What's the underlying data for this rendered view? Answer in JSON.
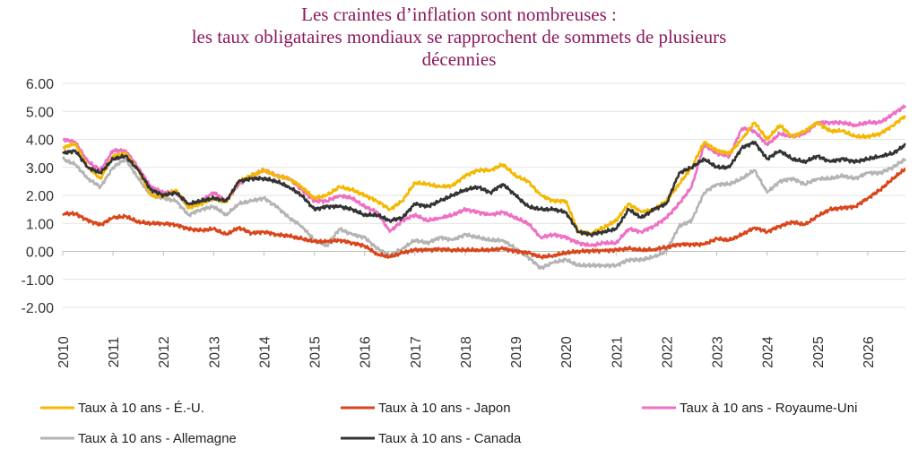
{
  "chart_data": {
    "type": "line",
    "title_lines": [
      "Les craintes d’inflation sont nombreuses :",
      "les taux obligataires mondiaux se rapprochent de sommets de plusieurs",
      "décennies"
    ],
    "xlabel": "",
    "ylabel": "",
    "ylim": [
      -2,
      6
    ],
    "xlim": [
      2010,
      2026.75
    ],
    "yticks": [
      "6.00",
      "5.00",
      "4.00",
      "3.00",
      "2.00",
      "1.00",
      "0.00",
      "-1.00",
      "-2.00"
    ],
    "xticks": [
      "2010",
      "2011",
      "2012",
      "2013",
      "2014",
      "2015",
      "2016",
      "2017",
      "2018",
      "2019",
      "2020",
      "2021",
      "2022",
      "2023",
      "2024",
      "2025",
      "2026"
    ],
    "grid": true,
    "legend_position": "bottom",
    "series": [
      {
        "name": "Taux à 10 ans - É.-U.",
        "color": "#f5b800",
        "x": [
          2010,
          2010.25,
          2010.5,
          2010.75,
          2011,
          2011.25,
          2011.5,
          2011.75,
          2012,
          2012.25,
          2012.5,
          2012.75,
          2013,
          2013.25,
          2013.5,
          2013.75,
          2014,
          2014.25,
          2014.5,
          2014.75,
          2015,
          2015.25,
          2015.5,
          2015.75,
          2016,
          2016.25,
          2016.5,
          2016.75,
          2017,
          2017.25,
          2017.5,
          2017.75,
          2018,
          2018.25,
          2018.5,
          2018.75,
          2019,
          2019.25,
          2019.5,
          2019.75,
          2020,
          2020.25,
          2020.5,
          2020.75,
          2021,
          2021.25,
          2021.5,
          2021.75,
          2022,
          2022.25,
          2022.5,
          2022.75,
          2023,
          2023.25,
          2023.5,
          2023.75,
          2024,
          2024.25,
          2024.5,
          2024.75,
          2025,
          2025.25,
          2025.5,
          2025.75,
          2026,
          2026.25,
          2026.5,
          2026.75
        ],
        "y": [
          3.7,
          3.85,
          3.0,
          2.6,
          3.4,
          3.5,
          2.9,
          2.0,
          1.95,
          2.2,
          1.55,
          1.7,
          1.9,
          1.75,
          2.5,
          2.7,
          2.9,
          2.7,
          2.6,
          2.3,
          1.9,
          2.0,
          2.3,
          2.2,
          2.0,
          1.8,
          1.5,
          1.8,
          2.45,
          2.4,
          2.3,
          2.35,
          2.7,
          2.9,
          2.9,
          3.1,
          2.7,
          2.5,
          2.0,
          1.8,
          1.8,
          0.7,
          0.65,
          0.85,
          1.1,
          1.7,
          1.4,
          1.5,
          1.8,
          2.4,
          3.0,
          3.9,
          3.6,
          3.5,
          4.0,
          4.6,
          4.0,
          4.5,
          4.1,
          4.3,
          4.6,
          4.3,
          4.3,
          4.1,
          4.1,
          4.2,
          4.5,
          4.85
        ]
      },
      {
        "name": "Taux à 10 ans - Japon",
        "color": "#d9461b",
        "x": [
          2010,
          2010.25,
          2010.5,
          2010.75,
          2011,
          2011.25,
          2011.5,
          2011.75,
          2012,
          2012.25,
          2012.5,
          2012.75,
          2013,
          2013.25,
          2013.5,
          2013.75,
          2014,
          2014.25,
          2014.5,
          2014.75,
          2015,
          2015.25,
          2015.5,
          2015.75,
          2016,
          2016.25,
          2016.5,
          2016.75,
          2017,
          2017.25,
          2017.5,
          2017.75,
          2018,
          2018.25,
          2018.5,
          2018.75,
          2019,
          2019.25,
          2019.5,
          2019.75,
          2020,
          2020.25,
          2020.5,
          2020.75,
          2021,
          2021.25,
          2021.5,
          2021.75,
          2022,
          2022.25,
          2022.5,
          2022.75,
          2023,
          2023.25,
          2023.5,
          2023.75,
          2024,
          2024.25,
          2024.5,
          2024.75,
          2025,
          2025.25,
          2025.5,
          2025.75,
          2026,
          2026.25,
          2026.5,
          2026.75
        ],
        "y": [
          1.35,
          1.35,
          1.1,
          0.95,
          1.2,
          1.25,
          1.05,
          1.0,
          1.0,
          0.95,
          0.8,
          0.75,
          0.8,
          0.6,
          0.85,
          0.65,
          0.7,
          0.6,
          0.55,
          0.45,
          0.35,
          0.35,
          0.4,
          0.3,
          0.2,
          -0.1,
          -0.2,
          -0.05,
          0.05,
          0.05,
          0.08,
          0.05,
          0.05,
          0.05,
          0.05,
          0.1,
          0.0,
          -0.05,
          -0.2,
          -0.15,
          -0.05,
          0.0,
          0.02,
          0.02,
          0.05,
          0.1,
          0.05,
          0.07,
          0.15,
          0.25,
          0.25,
          0.25,
          0.45,
          0.4,
          0.6,
          0.85,
          0.7,
          0.9,
          1.05,
          0.95,
          1.25,
          1.5,
          1.55,
          1.6,
          1.9,
          2.2,
          2.6,
          2.95
        ]
      },
      {
        "name": "Taux à 10 ans - Royaume-Uni",
        "color": "#ee6fc5",
        "x": [
          2010,
          2010.25,
          2010.5,
          2010.75,
          2011,
          2011.25,
          2011.5,
          2011.75,
          2012,
          2012.25,
          2012.5,
          2012.75,
          2013,
          2013.25,
          2013.5,
          2013.75,
          2014,
          2014.25,
          2014.5,
          2014.75,
          2015,
          2015.25,
          2015.5,
          2015.75,
          2016,
          2016.25,
          2016.5,
          2016.75,
          2017,
          2017.25,
          2017.5,
          2017.75,
          2018,
          2018.25,
          2018.5,
          2018.75,
          2019,
          2019.25,
          2019.5,
          2019.75,
          2020,
          2020.25,
          2020.5,
          2020.75,
          2021,
          2021.25,
          2021.5,
          2021.75,
          2022,
          2022.25,
          2022.5,
          2022.75,
          2023,
          2023.25,
          2023.5,
          2023.75,
          2024,
          2024.25,
          2024.5,
          2024.75,
          2025,
          2025.25,
          2025.5,
          2025.75,
          2026,
          2026.25,
          2026.5,
          2026.75
        ],
        "y": [
          4.0,
          3.9,
          3.2,
          2.9,
          3.6,
          3.6,
          3.0,
          2.3,
          2.1,
          2.1,
          1.6,
          1.8,
          2.1,
          1.8,
          2.4,
          2.7,
          2.9,
          2.7,
          2.6,
          2.2,
          1.8,
          1.8,
          2.0,
          1.9,
          1.6,
          1.4,
          0.7,
          1.1,
          1.3,
          1.1,
          1.2,
          1.3,
          1.5,
          1.4,
          1.3,
          1.4,
          1.2,
          1.0,
          0.5,
          0.6,
          0.5,
          0.3,
          0.2,
          0.3,
          0.3,
          0.8,
          0.7,
          0.9,
          1.2,
          1.7,
          2.3,
          3.8,
          3.5,
          3.4,
          4.4,
          4.3,
          3.8,
          4.2,
          4.1,
          4.2,
          4.6,
          4.6,
          4.6,
          4.5,
          4.6,
          4.6,
          4.9,
          5.2
        ]
      },
      {
        "name": "Taux à 10 ans - Allemagne",
        "color": "#b4b4b4",
        "x": [
          2010,
          2010.25,
          2010.5,
          2010.75,
          2011,
          2011.25,
          2011.5,
          2011.75,
          2012,
          2012.25,
          2012.5,
          2012.75,
          2013,
          2013.25,
          2013.5,
          2013.75,
          2014,
          2014.25,
          2014.5,
          2014.75,
          2015,
          2015.25,
          2015.5,
          2015.75,
          2016,
          2016.25,
          2016.5,
          2016.75,
          2017,
          2017.25,
          2017.5,
          2017.75,
          2018,
          2018.25,
          2018.5,
          2018.75,
          2019,
          2019.25,
          2019.5,
          2019.75,
          2020,
          2020.25,
          2020.5,
          2020.75,
          2021,
          2021.25,
          2021.5,
          2021.75,
          2022,
          2022.25,
          2022.5,
          2022.75,
          2023,
          2023.25,
          2023.5,
          2023.75,
          2024,
          2024.25,
          2024.5,
          2024.75,
          2025,
          2025.25,
          2025.5,
          2025.75,
          2026,
          2026.25,
          2026.5,
          2026.75
        ],
        "y": [
          3.3,
          3.1,
          2.6,
          2.3,
          3.0,
          3.3,
          2.6,
          2.0,
          1.9,
          1.8,
          1.3,
          1.5,
          1.6,
          1.3,
          1.7,
          1.8,
          1.9,
          1.6,
          1.2,
          0.9,
          0.4,
          0.2,
          0.8,
          0.6,
          0.5,
          0.1,
          -0.15,
          0.1,
          0.4,
          0.3,
          0.5,
          0.4,
          0.6,
          0.5,
          0.4,
          0.4,
          0.1,
          -0.2,
          -0.6,
          -0.4,
          -0.3,
          -0.5,
          -0.5,
          -0.5,
          -0.5,
          -0.3,
          -0.3,
          -0.2,
          0.0,
          0.9,
          1.1,
          2.1,
          2.4,
          2.4,
          2.6,
          2.9,
          2.1,
          2.5,
          2.6,
          2.4,
          2.6,
          2.6,
          2.7,
          2.6,
          2.8,
          2.8,
          3.0,
          3.3
        ]
      },
      {
        "name": "Taux à 10 ans - Canada",
        "color": "#333333",
        "x": [
          2010,
          2010.25,
          2010.5,
          2010.75,
          2011,
          2011.25,
          2011.5,
          2011.75,
          2012,
          2012.25,
          2012.5,
          2012.75,
          2013,
          2013.25,
          2013.5,
          2013.75,
          2014,
          2014.25,
          2014.5,
          2014.75,
          2015,
          2015.25,
          2015.5,
          2015.75,
          2016,
          2016.25,
          2016.5,
          2016.75,
          2017,
          2017.25,
          2017.5,
          2017.75,
          2018,
          2018.25,
          2018.5,
          2018.75,
          2019,
          2019.25,
          2019.5,
          2019.75,
          2020,
          2020.25,
          2020.5,
          2020.75,
          2021,
          2021.25,
          2021.5,
          2021.75,
          2022,
          2022.25,
          2022.5,
          2022.75,
          2023,
          2023.25,
          2023.5,
          2023.75,
          2024,
          2024.25,
          2024.5,
          2024.75,
          2025,
          2025.25,
          2025.5,
          2025.75,
          2026,
          2026.25,
          2026.5,
          2026.75
        ],
        "y": [
          3.5,
          3.6,
          3.0,
          2.8,
          3.3,
          3.4,
          2.9,
          2.2,
          2.0,
          2.1,
          1.7,
          1.8,
          1.9,
          1.8,
          2.5,
          2.6,
          2.6,
          2.5,
          2.3,
          2.0,
          1.5,
          1.6,
          1.6,
          1.5,
          1.3,
          1.3,
          1.1,
          1.2,
          1.7,
          1.6,
          1.8,
          2.0,
          2.2,
          2.3,
          2.1,
          2.4,
          2.0,
          1.6,
          1.5,
          1.5,
          1.4,
          0.7,
          0.6,
          0.7,
          0.8,
          1.5,
          1.2,
          1.5,
          1.7,
          2.8,
          3.0,
          3.3,
          3.0,
          3.0,
          3.7,
          3.9,
          3.3,
          3.6,
          3.3,
          3.2,
          3.4,
          3.2,
          3.3,
          3.2,
          3.3,
          3.4,
          3.5,
          3.8
        ]
      }
    ]
  }
}
